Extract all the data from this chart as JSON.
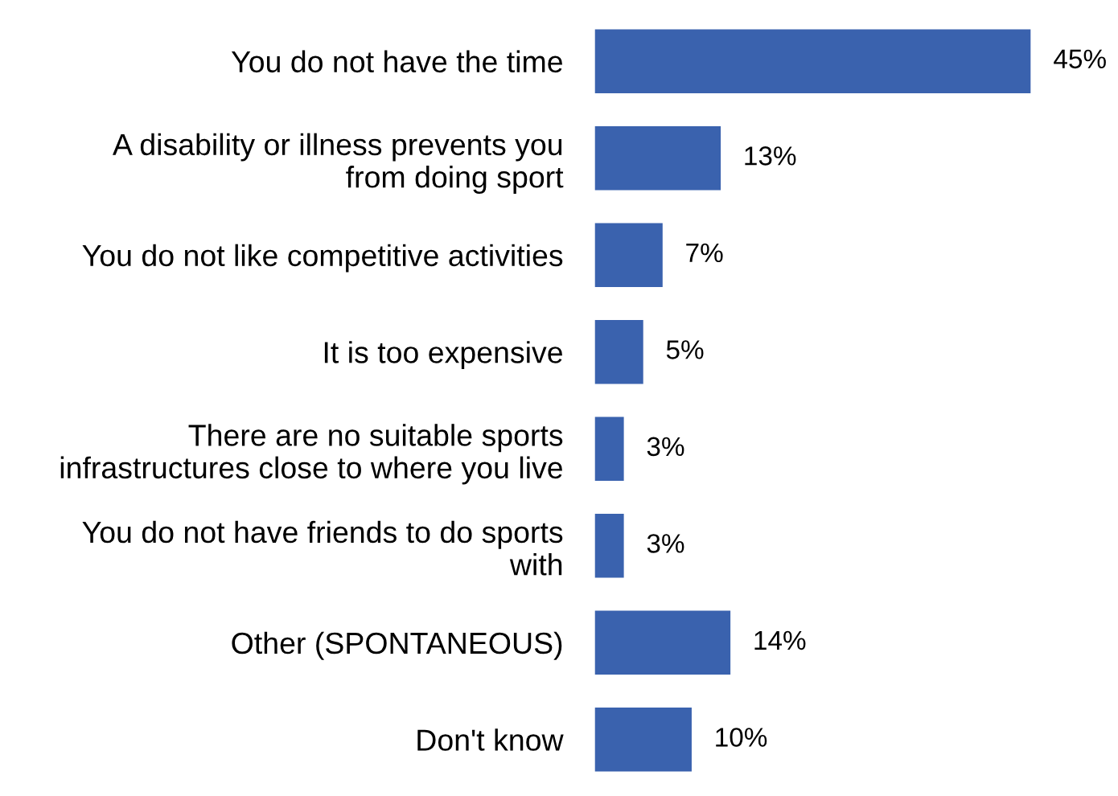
{
  "chart_data": {
    "type": "bar",
    "orientation": "horizontal",
    "categories": [
      "You do not have the time",
      "A disability or illness prevents you\nfrom doing sport",
      "You do not like competitive activities",
      "It is too expensive",
      "There are no suitable sports\ninfrastructures close to where you live",
      "You do not have friends to do sports\nwith",
      "Other (SPONTANEOUS)",
      "Don't know"
    ],
    "values": [
      45,
      13,
      7,
      5,
      3,
      3,
      14,
      10
    ],
    "value_labels": [
      "45%",
      "13%",
      "7%",
      "5%",
      "3%",
      "3%",
      "14%",
      "10%"
    ],
    "color": "#3a62ae",
    "grid": false,
    "legend": false
  }
}
